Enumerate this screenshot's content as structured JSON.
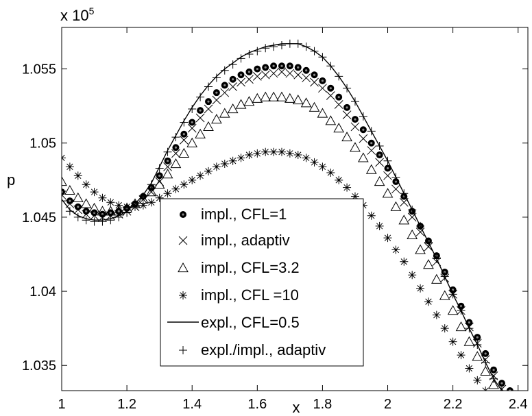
{
  "chart_data": {
    "type": "scatter",
    "xlabel": "x",
    "ylabel": "p",
    "multiplier_text": "x 10",
    "multiplier_exponent": "5",
    "multiplier_value": 100000,
    "xlim": [
      1,
      2.43
    ],
    "ylim": [
      1.0333,
      1.0578
    ],
    "xticks": [
      1,
      1.2,
      1.4,
      1.6,
      1.8,
      2,
      2.2,
      2.4
    ],
    "xtick_labels": [
      "1",
      "1.2",
      "1.4",
      "1.6",
      "1.8",
      "2",
      "2.2",
      "2.4"
    ],
    "yticks": [
      1.035,
      1.04,
      1.045,
      1.05,
      1.055
    ],
    "ytick_labels": [
      "1.035",
      "1.04",
      "1.045",
      "1.05",
      "1.055"
    ],
    "grid": false,
    "legend_position": "bottom-left",
    "x": [
      1.0,
      1.025,
      1.05,
      1.075,
      1.1,
      1.125,
      1.15,
      1.175,
      1.2,
      1.225,
      1.25,
      1.275,
      1.3,
      1.325,
      1.35,
      1.375,
      1.4,
      1.425,
      1.45,
      1.475,
      1.5,
      1.525,
      1.55,
      1.575,
      1.6,
      1.625,
      1.65,
      1.675,
      1.7,
      1.725,
      1.75,
      1.775,
      1.8,
      1.825,
      1.85,
      1.875,
      1.9,
      1.925,
      1.95,
      1.975,
      2.0,
      2.025,
      2.05,
      2.075,
      2.1,
      2.125,
      2.15,
      2.175,
      2.2,
      2.225,
      2.25,
      2.275,
      2.3,
      2.325,
      2.35,
      2.375,
      2.4,
      2.425
    ],
    "series": [
      {
        "name": "impl., CFL=1",
        "marker": "filled-circle",
        "values": [
          1.0467,
          1.0461,
          1.0457,
          1.0454,
          1.0453,
          1.0452,
          1.0453,
          1.0454,
          1.0456,
          1.0459,
          1.0464,
          1.047,
          1.0478,
          1.0488,
          1.0497,
          1.0506,
          1.0514,
          1.0522,
          1.0528,
          1.0534,
          1.0539,
          1.0543,
          1.0546,
          1.0548,
          1.055,
          1.0551,
          1.0552,
          1.0552,
          1.0552,
          1.0551,
          1.0549,
          1.0546,
          1.0542,
          1.0537,
          1.0531,
          1.0524,
          1.0516,
          1.0509,
          1.05,
          1.0492,
          1.0483,
          1.0474,
          1.0464,
          1.0454,
          1.0444,
          1.0434,
          1.0424,
          1.0413,
          1.0401,
          1.039,
          1.0379,
          1.0369,
          1.0358,
          1.0347,
          1.0338,
          1.0333
        ]
      },
      {
        "name": "impl., adaptiv",
        "marker": "x",
        "values": [
          1.0465,
          1.0459,
          1.0455,
          1.0452,
          1.0451,
          1.045,
          1.0451,
          1.0452,
          1.0454,
          1.0457,
          1.0462,
          1.0467,
          1.0474,
          1.0484,
          1.0493,
          1.0502,
          1.051,
          1.0517,
          1.0523,
          1.0529,
          1.0534,
          1.0538,
          1.0541,
          1.0543,
          1.0545,
          1.0546,
          1.0547,
          1.0548,
          1.0547,
          1.0546,
          1.0544,
          1.0541,
          1.0537,
          1.0532,
          1.0526,
          1.0519,
          1.0511,
          1.0503,
          1.0495,
          1.0487,
          1.0478,
          1.0469,
          1.046,
          1.045,
          1.044,
          1.043,
          1.042,
          1.0409,
          1.0398,
          1.0387,
          1.0376,
          1.0365,
          1.0354,
          1.0343,
          1.0334
        ]
      },
      {
        "name": "impl., CFL=3.2",
        "marker": "triangle",
        "values": [
          1.0474,
          1.0468,
          1.0463,
          1.0459,
          1.0456,
          1.0454,
          1.0454,
          1.0454,
          1.0456,
          1.0459,
          1.0462,
          1.0467,
          1.0472,
          1.0479,
          1.0486,
          1.0493,
          1.05,
          1.0506,
          1.0511,
          1.0516,
          1.052,
          1.0523,
          1.0526,
          1.0528,
          1.053,
          1.0531,
          1.0531,
          1.0531,
          1.053,
          1.0529,
          1.0527,
          1.0524,
          1.052,
          1.0515,
          1.051,
          1.0504,
          1.0497,
          1.049,
          1.0482,
          1.0474,
          1.0466,
          1.0457,
          1.0448,
          1.0438,
          1.0428,
          1.0418,
          1.0408,
          1.0397,
          1.0387,
          1.0376,
          1.0366,
          1.0356,
          1.0346,
          1.0337
        ]
      },
      {
        "name": "impl., CFL =10",
        "marker": "asterisk",
        "values": [
          1.049,
          1.0484,
          1.0478,
          1.0472,
          1.0467,
          1.0463,
          1.046,
          1.0458,
          1.0457,
          1.0457,
          1.0458,
          1.046,
          1.0463,
          1.0466,
          1.0469,
          1.0472,
          1.0475,
          1.0478,
          1.0481,
          1.0484,
          1.0486,
          1.0488,
          1.049,
          1.0492,
          1.0493,
          1.0494,
          1.0494,
          1.0494,
          1.0493,
          1.0492,
          1.049,
          1.0487,
          1.0484,
          1.048,
          1.0475,
          1.047,
          1.0464,
          1.0458,
          1.0451,
          1.0444,
          1.0436,
          1.0428,
          1.042,
          1.0411,
          1.0402,
          1.0393,
          1.0384,
          1.0375,
          1.0366,
          1.0357,
          1.0348,
          1.034,
          1.0333
        ]
      },
      {
        "name": "expl., CFL=0.5",
        "marker": "line",
        "values": [
          1.0462,
          1.0455,
          1.0451,
          1.0449,
          1.0448,
          1.0448,
          1.0449,
          1.0451,
          1.0454,
          1.0459,
          1.0465,
          1.0473,
          1.0484,
          1.0495,
          1.0505,
          1.0515,
          1.0524,
          1.0532,
          1.0539,
          1.0545,
          1.055,
          1.0554,
          1.0558,
          1.0561,
          1.0563,
          1.0565,
          1.0566,
          1.0567,
          1.0567,
          1.0567,
          1.0565,
          1.0562,
          1.0558,
          1.0552,
          1.0545,
          1.0537,
          1.0528,
          1.0518,
          1.0508,
          1.0498,
          1.0488,
          1.0477,
          1.0466,
          1.0455,
          1.0444,
          1.0433,
          1.0422,
          1.041,
          1.0398,
          1.0387,
          1.0375,
          1.0364,
          1.0352,
          1.0341,
          1.0333
        ]
      },
      {
        "name": "expl./impl., adaptiv",
        "marker": "plus",
        "values": [
          1.0461,
          1.0454,
          1.045,
          1.0448,
          1.0447,
          1.0447,
          1.0448,
          1.045,
          1.0453,
          1.0458,
          1.0464,
          1.0472,
          1.0483,
          1.0494,
          1.0504,
          1.0514,
          1.0523,
          1.0531,
          1.0538,
          1.0544,
          1.0549,
          1.0553,
          1.0557,
          1.056,
          1.0562,
          1.0564,
          1.0565,
          1.0566,
          1.0567,
          1.0567,
          1.0565,
          1.0562,
          1.0558,
          1.0552,
          1.0545,
          1.0537,
          1.0528,
          1.0518,
          1.0508,
          1.0498,
          1.0488,
          1.0477,
          1.0466,
          1.0455,
          1.0444,
          1.0433,
          1.0422,
          1.041,
          1.0398,
          1.0387,
          1.0375,
          1.0364,
          1.0352,
          1.0341,
          1.0333
        ]
      }
    ]
  }
}
